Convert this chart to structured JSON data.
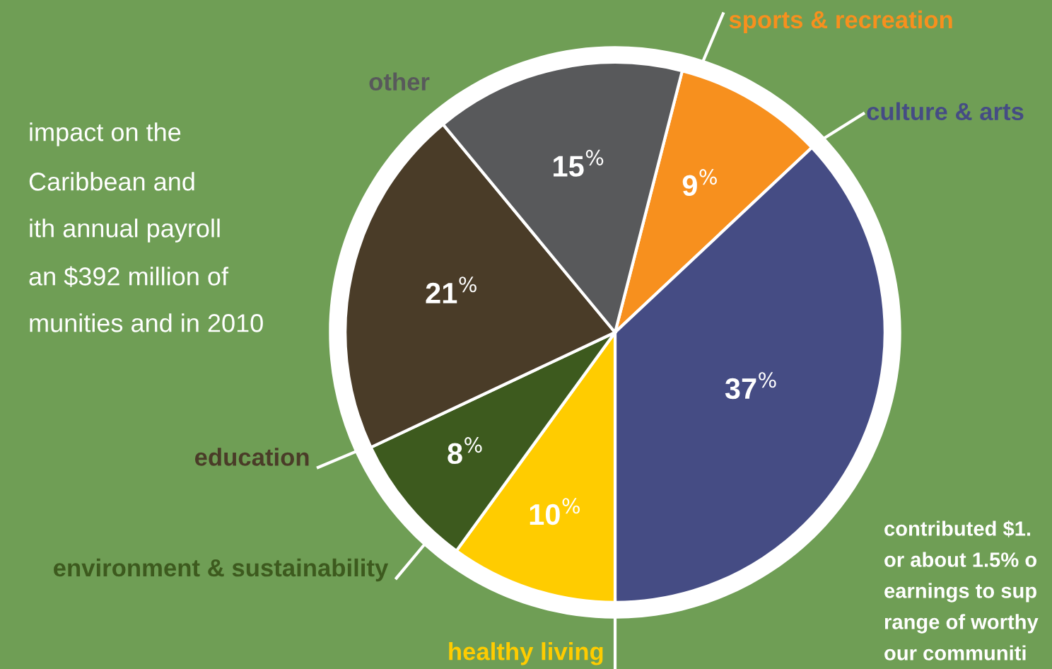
{
  "chart_data": {
    "type": "pie",
    "categories": [
      "sports & recreation",
      "culture & arts",
      "healthy living",
      "environment & sustainability",
      "education",
      "other"
    ],
    "values": [
      9,
      37,
      10,
      8,
      21,
      15
    ],
    "colors": [
      "#f7901e",
      "#454c84",
      "#ffcc00",
      "#3d5a1e",
      "#4a3c28",
      "#58595b"
    ],
    "value_labels": [
      "9$^{%}$",
      "37$^{%}$",
      "10$^{%}$",
      "8$^{%}$",
      "21$^{%}$",
      "15$^{%}$"
    ],
    "annotations": [
      "impact on the",
      "Caribbean and",
      "ith annual payroll",
      "an $392 million of",
      "munities and in 2010",
      "contributed $1.",
      "or about 1.5% o",
      "earnings to sup",
      "range of worthy",
      "our communiti"
    ],
    "legend": false
  }
}
